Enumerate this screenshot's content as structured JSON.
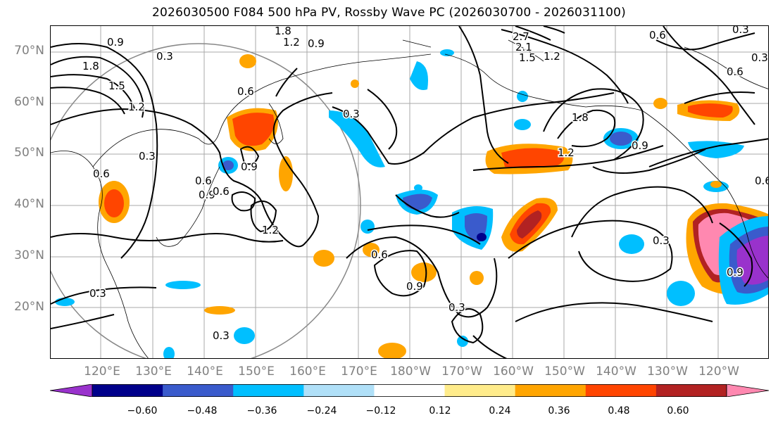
{
  "title": "2026030500 F084 500 hPa PV, Rossby Wave PC (2026030700 - 2026031100)",
  "lat_labels": [
    "70°N",
    "60°N",
    "50°N",
    "40°N",
    "30°N",
    "20°N"
  ],
  "lon_labels": [
    "120°E",
    "130°E",
    "140°E",
    "150°E",
    "160°E",
    "170°E",
    "180°W",
    "170°W",
    "160°W",
    "150°W",
    "140°W",
    "130°W",
    "120°W"
  ],
  "colorbar": {
    "ticks": [
      "−0.60",
      "−0.48",
      "−0.36",
      "−0.24",
      "−0.12",
      "0.12",
      "0.24",
      "0.36",
      "0.48",
      "0.60"
    ],
    "colors": [
      "#9932CC",
      "#00008B",
      "#3A5BCC",
      "#00BFFF",
      "#B0E0F8",
      "#FFFFFF",
      "#FFEC8B",
      "#FFA500",
      "#FF4500",
      "#B22222",
      "#FF88B0"
    ]
  },
  "contour_labels": [
    "1.8",
    "0.9",
    "1.2",
    "0.9",
    "0.3",
    "1.8",
    "1.5",
    "1.2",
    "0.6",
    "0.3",
    "0.6",
    "0.9",
    "0.6",
    "0.9",
    "1.2",
    "0.3",
    "0.3",
    "2.7",
    "2.1",
    "1.5",
    "1.2",
    "0.6",
    "1.8",
    "1.2",
    "0.9",
    "0.3",
    "0.6",
    "0.9",
    "0.3",
    "0.3",
    "0.9",
    "0.6",
    "0.3",
    "0.3",
    "0.6",
    "0.6"
  ]
}
